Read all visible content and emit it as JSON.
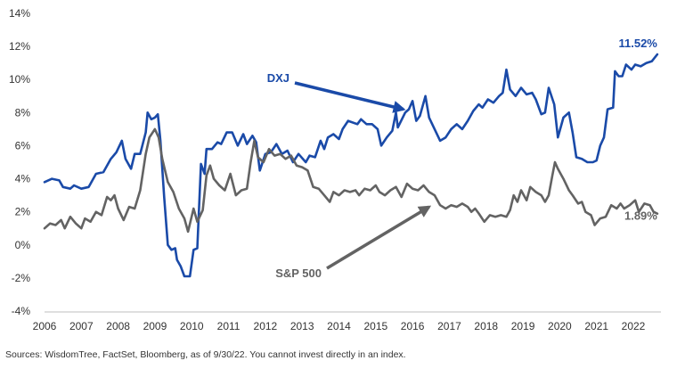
{
  "chart_data": {
    "type": "line",
    "xlabel": "",
    "ylabel": "",
    "xlim": [
      2006.0,
      2022.75
    ],
    "ylim": [
      -4,
      14
    ],
    "y_ticks": [
      -4,
      -2,
      0,
      2,
      4,
      6,
      8,
      10,
      12,
      14
    ],
    "y_tick_labels": [
      "-4%",
      "-2%",
      "0%",
      "2%",
      "4%",
      "6%",
      "8%",
      "10%",
      "12%",
      "14%"
    ],
    "x_ticks": [
      2006,
      2007,
      2008,
      2009,
      2010,
      2011,
      2012,
      2013,
      2014,
      2015,
      2016,
      2017,
      2018,
      2019,
      2020,
      2021,
      2022
    ],
    "x_tick_labels": [
      "2006",
      "2007",
      "2008",
      "2009",
      "2010",
      "2011",
      "2012",
      "2013",
      "2014",
      "2015",
      "2016",
      "2017",
      "2018",
      "2019",
      "2020",
      "2021",
      "2022"
    ],
    "grid": false,
    "series": [
      {
        "name": "DXJ",
        "color": "#1a4aa8",
        "end_label": "11.52%",
        "points": [
          [
            2006.0,
            3.8
          ],
          [
            2006.2,
            4.0
          ],
          [
            2006.4,
            3.9
          ],
          [
            2006.5,
            3.5
          ],
          [
            2006.7,
            3.4
          ],
          [
            2006.8,
            3.6
          ],
          [
            2007.0,
            3.4
          ],
          [
            2007.2,
            3.5
          ],
          [
            2007.4,
            4.3
          ],
          [
            2007.6,
            4.4
          ],
          [
            2007.8,
            5.2
          ],
          [
            2007.95,
            5.6
          ],
          [
            2008.1,
            6.3
          ],
          [
            2008.2,
            5.2
          ],
          [
            2008.35,
            4.6
          ],
          [
            2008.45,
            5.5
          ],
          [
            2008.6,
            5.5
          ],
          [
            2008.75,
            6.8
          ],
          [
            2008.8,
            8.0
          ],
          [
            2008.9,
            7.6
          ],
          [
            2009.0,
            7.7
          ],
          [
            2009.08,
            7.9
          ],
          [
            2009.15,
            6.3
          ],
          [
            2009.25,
            2.9
          ],
          [
            2009.35,
            0.0
          ],
          [
            2009.45,
            -0.3
          ],
          [
            2009.55,
            -0.2
          ],
          [
            2009.6,
            -0.9
          ],
          [
            2009.7,
            -1.3
          ],
          [
            2009.8,
            -1.9
          ],
          [
            2009.95,
            -1.9
          ],
          [
            2010.05,
            -0.3
          ],
          [
            2010.15,
            -0.2
          ],
          [
            2010.25,
            4.9
          ],
          [
            2010.35,
            4.3
          ],
          [
            2010.4,
            5.8
          ],
          [
            2010.55,
            5.8
          ],
          [
            2010.7,
            6.2
          ],
          [
            2010.8,
            6.1
          ],
          [
            2010.95,
            6.8
          ],
          [
            2011.1,
            6.8
          ],
          [
            2011.25,
            6.0
          ],
          [
            2011.4,
            6.7
          ],
          [
            2011.5,
            6.1
          ],
          [
            2011.65,
            6.6
          ],
          [
            2011.75,
            6.2
          ],
          [
            2011.85,
            4.5
          ],
          [
            2012.0,
            5.5
          ],
          [
            2012.15,
            5.6
          ],
          [
            2012.3,
            6.1
          ],
          [
            2012.45,
            5.5
          ],
          [
            2012.6,
            5.7
          ],
          [
            2012.75,
            5.0
          ],
          [
            2012.9,
            5.5
          ],
          [
            2013.1,
            5.0
          ],
          [
            2013.2,
            5.4
          ],
          [
            2013.35,
            5.3
          ],
          [
            2013.5,
            6.3
          ],
          [
            2013.6,
            5.8
          ],
          [
            2013.7,
            6.5
          ],
          [
            2013.85,
            6.7
          ],
          [
            2014.0,
            6.4
          ],
          [
            2014.1,
            7.0
          ],
          [
            2014.25,
            7.5
          ],
          [
            2014.5,
            7.3
          ],
          [
            2014.6,
            7.6
          ],
          [
            2014.75,
            7.3
          ],
          [
            2014.9,
            7.3
          ],
          [
            2015.05,
            7.0
          ],
          [
            2015.15,
            6.0
          ],
          [
            2015.3,
            6.5
          ],
          [
            2015.45,
            6.9
          ],
          [
            2015.55,
            8.0
          ],
          [
            2015.6,
            7.1
          ],
          [
            2015.8,
            8.0
          ],
          [
            2015.9,
            8.2
          ],
          [
            2016.0,
            8.7
          ],
          [
            2016.1,
            7.5
          ],
          [
            2016.2,
            7.8
          ],
          [
            2016.35,
            9.0
          ],
          [
            2016.45,
            7.7
          ],
          [
            2016.6,
            7.0
          ],
          [
            2016.75,
            6.3
          ],
          [
            2016.9,
            6.5
          ],
          [
            2017.05,
            7.0
          ],
          [
            2017.2,
            7.3
          ],
          [
            2017.35,
            7.0
          ],
          [
            2017.5,
            7.5
          ],
          [
            2017.65,
            8.1
          ],
          [
            2017.8,
            8.5
          ],
          [
            2017.9,
            8.3
          ],
          [
            2018.05,
            8.8
          ],
          [
            2018.2,
            8.6
          ],
          [
            2018.35,
            9.0
          ],
          [
            2018.45,
            9.2
          ],
          [
            2018.55,
            10.6
          ],
          [
            2018.65,
            9.4
          ],
          [
            2018.8,
            9.0
          ],
          [
            2018.95,
            9.5
          ],
          [
            2019.1,
            9.1
          ],
          [
            2019.25,
            9.2
          ],
          [
            2019.35,
            8.8
          ],
          [
            2019.5,
            7.9
          ],
          [
            2019.6,
            8.0
          ],
          [
            2019.7,
            9.5
          ],
          [
            2019.85,
            8.5
          ],
          [
            2019.95,
            6.5
          ],
          [
            2020.1,
            7.7
          ],
          [
            2020.25,
            8.0
          ],
          [
            2020.35,
            6.8
          ],
          [
            2020.45,
            5.3
          ],
          [
            2020.6,
            5.2
          ],
          [
            2020.75,
            5.0
          ],
          [
            2020.9,
            5.0
          ],
          [
            2021.0,
            5.1
          ],
          [
            2021.1,
            6.0
          ],
          [
            2021.2,
            6.5
          ],
          [
            2021.3,
            8.2
          ],
          [
            2021.45,
            8.3
          ],
          [
            2021.5,
            10.5
          ],
          [
            2021.6,
            10.2
          ],
          [
            2021.7,
            10.2
          ],
          [
            2021.8,
            10.9
          ],
          [
            2021.95,
            10.6
          ],
          [
            2022.05,
            10.9
          ],
          [
            2022.2,
            10.8
          ],
          [
            2022.35,
            11.0
          ],
          [
            2022.5,
            11.1
          ],
          [
            2022.65,
            11.52
          ]
        ]
      },
      {
        "name": "S&P 500",
        "color": "#636363",
        "end_label": "1.89%",
        "points": [
          [
            2006.0,
            1.0
          ],
          [
            2006.15,
            1.3
          ],
          [
            2006.3,
            1.2
          ],
          [
            2006.45,
            1.5
          ],
          [
            2006.55,
            1.0
          ],
          [
            2006.7,
            1.7
          ],
          [
            2006.85,
            1.3
          ],
          [
            2007.0,
            1.0
          ],
          [
            2007.1,
            1.6
          ],
          [
            2007.25,
            1.4
          ],
          [
            2007.4,
            2.0
          ],
          [
            2007.55,
            1.8
          ],
          [
            2007.7,
            2.9
          ],
          [
            2007.8,
            2.7
          ],
          [
            2007.9,
            3.0
          ],
          [
            2008.0,
            2.2
          ],
          [
            2008.15,
            1.5
          ],
          [
            2008.3,
            2.3
          ],
          [
            2008.45,
            2.2
          ],
          [
            2008.6,
            3.3
          ],
          [
            2008.75,
            5.5
          ],
          [
            2008.85,
            6.5
          ],
          [
            2009.0,
            7.0
          ],
          [
            2009.1,
            6.5
          ],
          [
            2009.2,
            5.2
          ],
          [
            2009.35,
            3.8
          ],
          [
            2009.5,
            3.2
          ],
          [
            2009.65,
            2.2
          ],
          [
            2009.8,
            1.6
          ],
          [
            2009.9,
            0.8
          ],
          [
            2010.05,
            2.2
          ],
          [
            2010.15,
            1.4
          ],
          [
            2010.3,
            2.1
          ],
          [
            2010.4,
            4.2
          ],
          [
            2010.5,
            4.8
          ],
          [
            2010.6,
            4.0
          ],
          [
            2010.75,
            3.6
          ],
          [
            2010.9,
            3.3
          ],
          [
            2011.05,
            4.3
          ],
          [
            2011.2,
            3.0
          ],
          [
            2011.35,
            3.3
          ],
          [
            2011.5,
            3.4
          ],
          [
            2011.6,
            5.0
          ],
          [
            2011.7,
            6.3
          ],
          [
            2011.8,
            5.3
          ],
          [
            2011.95,
            5.0
          ],
          [
            2012.1,
            5.8
          ],
          [
            2012.25,
            5.4
          ],
          [
            2012.4,
            5.5
          ],
          [
            2012.55,
            5.2
          ],
          [
            2012.7,
            5.4
          ],
          [
            2012.85,
            4.8
          ],
          [
            2013.0,
            4.7
          ],
          [
            2013.15,
            4.5
          ],
          [
            2013.3,
            3.5
          ],
          [
            2013.45,
            3.4
          ],
          [
            2013.6,
            3.0
          ],
          [
            2013.75,
            2.6
          ],
          [
            2013.85,
            3.2
          ],
          [
            2014.0,
            3.0
          ],
          [
            2014.15,
            3.3
          ],
          [
            2014.3,
            3.2
          ],
          [
            2014.45,
            3.3
          ],
          [
            2014.55,
            3.0
          ],
          [
            2014.7,
            3.4
          ],
          [
            2014.85,
            3.3
          ],
          [
            2015.0,
            3.6
          ],
          [
            2015.1,
            3.2
          ],
          [
            2015.25,
            3.0
          ],
          [
            2015.4,
            3.3
          ],
          [
            2015.55,
            3.5
          ],
          [
            2015.7,
            2.9
          ],
          [
            2015.85,
            3.7
          ],
          [
            2016.0,
            3.4
          ],
          [
            2016.15,
            3.3
          ],
          [
            2016.3,
            3.6
          ],
          [
            2016.45,
            3.2
          ],
          [
            2016.6,
            3.0
          ],
          [
            2016.75,
            2.4
          ],
          [
            2016.9,
            2.2
          ],
          [
            2017.05,
            2.4
          ],
          [
            2017.2,
            2.3
          ],
          [
            2017.35,
            2.5
          ],
          [
            2017.5,
            2.3
          ],
          [
            2017.6,
            2.0
          ],
          [
            2017.7,
            2.2
          ],
          [
            2017.8,
            1.9
          ],
          [
            2017.95,
            1.4
          ],
          [
            2018.1,
            1.8
          ],
          [
            2018.25,
            1.7
          ],
          [
            2018.4,
            1.8
          ],
          [
            2018.55,
            1.7
          ],
          [
            2018.65,
            2.1
          ],
          [
            2018.75,
            3.0
          ],
          [
            2018.85,
            2.6
          ],
          [
            2018.95,
            3.3
          ],
          [
            2019.1,
            2.7
          ],
          [
            2019.2,
            3.5
          ],
          [
            2019.35,
            3.2
          ],
          [
            2019.5,
            3.0
          ],
          [
            2019.6,
            2.6
          ],
          [
            2019.7,
            3.0
          ],
          [
            2019.8,
            4.2
          ],
          [
            2019.87,
            5.0
          ],
          [
            2019.95,
            4.6
          ],
          [
            2020.1,
            4.0
          ],
          [
            2020.25,
            3.3
          ],
          [
            2020.35,
            3.0
          ],
          [
            2020.5,
            2.5
          ],
          [
            2020.6,
            2.6
          ],
          [
            2020.7,
            2.0
          ],
          [
            2020.85,
            1.8
          ],
          [
            2020.95,
            1.2
          ],
          [
            2021.1,
            1.6
          ],
          [
            2021.25,
            1.7
          ],
          [
            2021.4,
            2.4
          ],
          [
            2021.55,
            2.2
          ],
          [
            2021.65,
            2.5
          ],
          [
            2021.75,
            2.2
          ],
          [
            2021.9,
            2.4
          ],
          [
            2022.05,
            2.7
          ],
          [
            2022.15,
            2.0
          ],
          [
            2022.3,
            2.5
          ],
          [
            2022.45,
            2.4
          ],
          [
            2022.55,
            2.0
          ],
          [
            2022.65,
            1.89
          ]
        ]
      }
    ],
    "annotations": [
      {
        "label": "DXJ",
        "color": "#1a4aa8",
        "target": [
          2015.75,
          8.2
        ],
        "text_anchor": "end"
      },
      {
        "label": "S&P 500",
        "color": "#636363",
        "target": [
          2016.45,
          2.3
        ],
        "text_anchor": "end"
      }
    ]
  },
  "footer": {
    "source": "Sources: WisdomTree, FactSet, Bloomberg, as of 9/30/22. You cannot invest directly in an index."
  }
}
